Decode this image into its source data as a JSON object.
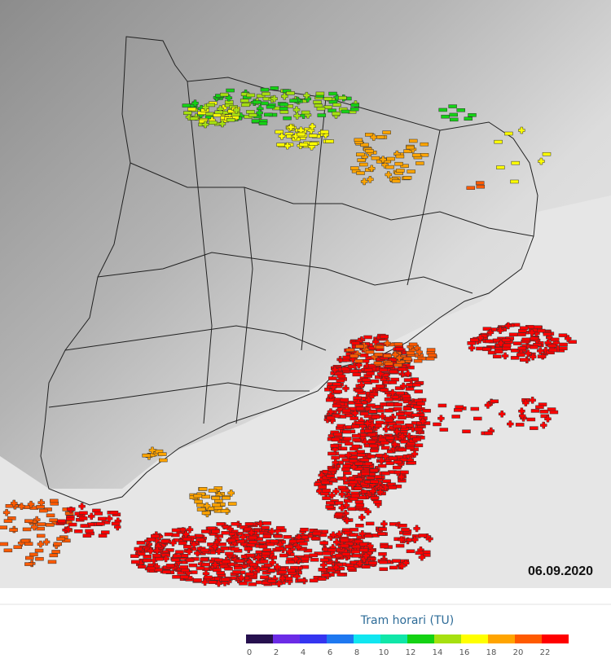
{
  "map": {
    "date": "06.09.2020"
  },
  "legend": {
    "title": "Tram horari (TU)",
    "ticks": [
      0,
      2,
      4,
      6,
      8,
      10,
      12,
      14,
      16,
      18,
      20,
      22
    ],
    "colors": [
      "#26104e",
      "#6b2be6",
      "#3535f0",
      "#1e78f0",
      "#10e6f0",
      "#10e6a8",
      "#14d214",
      "#a6e010",
      "#ffff00",
      "#ffa400",
      "#ff5a00",
      "#ff0000"
    ]
  }
}
